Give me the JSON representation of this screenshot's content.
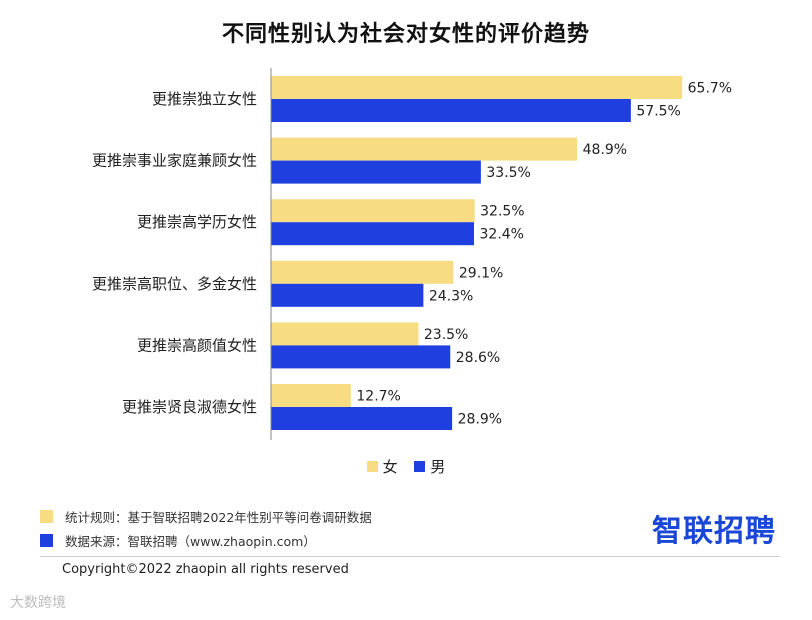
{
  "title": "不同性别认为社会对女性的评价趋势",
  "colors": {
    "female": "#f7dc82",
    "male": "#1f3fe0"
  },
  "legend": {
    "female": "女",
    "male": "男"
  },
  "chart_data": {
    "type": "bar",
    "orientation": "horizontal",
    "title": "不同性别认为社会对女性的评价趋势",
    "categories": [
      "更推崇独立女性",
      "更推崇事业家庭兼顾女性",
      "更推崇高学历女性",
      "更推崇高职位、多金女性",
      "更推崇高颜值女性",
      "更推崇贤良淑德女性"
    ],
    "series": [
      {
        "name": "女",
        "values": [
          65.7,
          48.9,
          32.5,
          29.1,
          23.5,
          12.7
        ]
      },
      {
        "name": "男",
        "values": [
          57.5,
          33.5,
          32.4,
          24.3,
          28.6,
          28.9
        ]
      }
    ],
    "value_suffix": "%",
    "legend_position": "bottom-center"
  },
  "notes": {
    "rule": "统计规则：基于智联招聘2022年性别平等问卷调研数据",
    "source": "数据来源：智联招聘（www.zhaopin.com）"
  },
  "logo": "智联招聘",
  "copyright": "Copyright©2022 zhaopin all rights reserved",
  "watermark": "大数跨境"
}
